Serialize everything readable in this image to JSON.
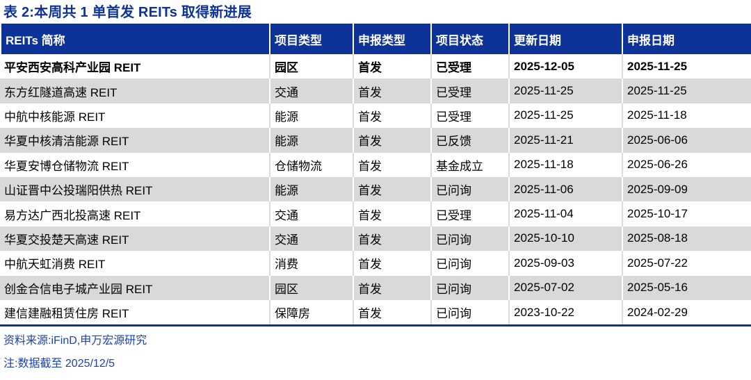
{
  "title": "表 2:本周共 1 单首发 REITs 取得新进展",
  "table": {
    "columns": [
      "REITs 简称",
      "项目类型",
      "申报类型",
      "项目状态",
      "更新日期",
      "申报日期"
    ],
    "rows": [
      {
        "bold": true,
        "cells": [
          "平安西安高科产业园 REIT",
          "园区",
          "首发",
          "已受理",
          "2025-12-05",
          "2025-11-25"
        ]
      },
      {
        "bold": false,
        "cells": [
          "东方红隧道高速 REIT",
          "交通",
          "首发",
          "已受理",
          "2025-11-25",
          "2025-11-25"
        ]
      },
      {
        "bold": false,
        "cells": [
          "中航中核能源 REIT",
          "能源",
          "首发",
          "已受理",
          "2025-11-25",
          "2025-11-18"
        ]
      },
      {
        "bold": false,
        "cells": [
          "华夏中核清洁能源 REIT",
          "能源",
          "首发",
          "已反馈",
          "2025-11-21",
          "2025-06-06"
        ]
      },
      {
        "bold": false,
        "cells": [
          "华夏安博仓储物流 REIT",
          "仓储物流",
          "首发",
          "基金成立",
          "2025-11-18",
          "2025-06-26"
        ]
      },
      {
        "bold": false,
        "cells": [
          "山证晋中公投瑞阳供热 REIT",
          "能源",
          "首发",
          "已问询",
          "2025-11-06",
          "2025-09-09"
        ]
      },
      {
        "bold": false,
        "cells": [
          "易方达广西北投高速 REIT",
          "交通",
          "首发",
          "已受理",
          "2025-11-04",
          "2025-10-17"
        ]
      },
      {
        "bold": false,
        "cells": [
          "华夏交投楚天高速 REIT",
          "交通",
          "首发",
          "已问询",
          "2025-10-10",
          "2025-08-18"
        ]
      },
      {
        "bold": false,
        "cells": [
          "中航天虹消费 REIT",
          "消费",
          "首发",
          "已问询",
          "2025-09-03",
          "2025-07-22"
        ]
      },
      {
        "bold": false,
        "cells": [
          "创金合信电子城产业园 REIT",
          "园区",
          "首发",
          "已问询",
          "2025-07-02",
          "2025-05-16"
        ]
      },
      {
        "bold": false,
        "cells": [
          "建信建融租赁住房 REIT",
          "保障房",
          "首发",
          "已问询",
          "2023-10-22",
          "2024-02-29"
        ]
      }
    ]
  },
  "footer": {
    "source": "资料来源:iFinD,申万宏源研究",
    "note": "注:数据截至 2025/12/5"
  },
  "colors": {
    "navy": "#0E3398",
    "row_alt": "#D9D9D9",
    "footer_text": "#1B41B5",
    "header_text": "#FFFFFF",
    "body_text": "#000000",
    "separator_on_white": "#DCDCDC"
  }
}
